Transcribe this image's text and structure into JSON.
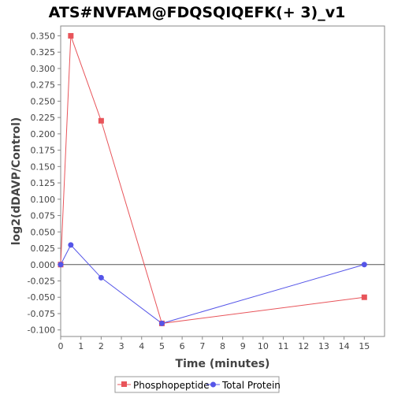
{
  "chart_data": {
    "type": "line",
    "title": "ATS#NVFAM@FDQSQIQEFK(+ 3)_v1",
    "xlabel": "Time (minutes)",
    "ylabel": "log2(dDAVP/Control)",
    "xlim": [
      0,
      16
    ],
    "ylim": [
      -0.11,
      0.365
    ],
    "x_ticks": [
      0,
      1,
      2,
      3,
      4,
      5,
      6,
      7,
      8,
      9,
      10,
      11,
      12,
      13,
      14,
      15
    ],
    "x_tick_labels": [
      "0",
      "1",
      "2",
      "3",
      "4",
      "5",
      "6",
      "7",
      "8",
      "9",
      "10",
      "11",
      "12",
      "13",
      "14",
      "15"
    ],
    "y_ticks": [
      -0.1,
      -0.075,
      -0.05,
      -0.025,
      0.0,
      0.025,
      0.05,
      0.075,
      0.1,
      0.125,
      0.15,
      0.175,
      0.2,
      0.225,
      0.25,
      0.275,
      0.3,
      0.325,
      0.35
    ],
    "y_tick_labels": [
      "-0.100",
      "-0.075",
      "-0.050",
      "-0.025",
      "0.000",
      "0.025",
      "0.050",
      "0.075",
      "0.100",
      "0.125",
      "0.150",
      "0.175",
      "0.200",
      "0.225",
      "0.250",
      "0.275",
      "0.300",
      "0.325",
      "0.350"
    ],
    "grid": false,
    "zero_line": true,
    "legend_position": "bottom",
    "series": [
      {
        "name": "Phosphopeptide",
        "color": "#e8545a",
        "marker": "square",
        "x": [
          0,
          0.5,
          2,
          5,
          15
        ],
        "y": [
          0.0,
          0.35,
          0.22,
          -0.09,
          -0.05
        ]
      },
      {
        "name": "Total Protein",
        "color": "#5555e8",
        "marker": "circle",
        "x": [
          0,
          0.5,
          2,
          5,
          15
        ],
        "y": [
          0.0,
          0.03,
          -0.02,
          -0.09,
          0.0
        ]
      }
    ]
  }
}
